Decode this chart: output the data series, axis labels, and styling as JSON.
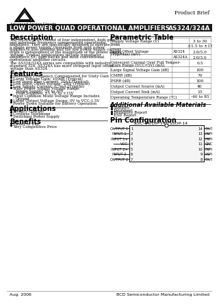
{
  "title": "LOW POWER QUAD OPERATIONAL AMPLIFIERS",
  "part_number": "AS324/324A",
  "product_brief": "Product Brief",
  "company": "Advanced Analog Circuits",
  "description_title": "Description",
  "features_title": "Features",
  "applications_title": "Applications",
  "benefits_title": "Benefits",
  "parametric_title": "Parametric Table",
  "additional_title": "Additional Available Materials",
  "pin_title": "Pin Configuration",
  "pin_subtitle": "SOIC-14/DIP-14/TSSOP-14",
  "pin_left": [
    "OUTPUT 1",
    "INPUT 1-",
    "INPUT 1+",
    "VCC",
    "INPUT 2+",
    "INPUT 2-",
    "OUTPUT 2"
  ],
  "pin_right": [
    "OUTPUT 4",
    "INPUT 4-",
    "INPUT 4+",
    "GND",
    "INPUT 3+",
    "INPUT 3-",
    "OUTPUT 3"
  ],
  "pin_numbers_left": [
    1,
    2,
    3,
    4,
    5,
    6,
    7
  ],
  "pin_numbers_right": [
    14,
    13,
    12,
    11,
    10,
    9,
    8
  ],
  "footer_left": "Aug. 2006",
  "footer_right": "BCD Semiconductor Manufacturing Limited",
  "header_bg": "#1a1a1a",
  "body_bg": "#ffffff",
  "desc_lines": [
    "The AS324/324A consist of four independent, high gain",
    "and internally frequency compensated operational",
    "amplifiers. They are specifically designed to operate from",
    "a single power supply. Operation from split power",
    "supplies is also possible and the low power supply current",
    "drain is independent of the magnitude of the power supply",
    "voltage. Typical applications include transducer",
    "amplifiers, DC gain blocks and most conventional",
    "operational amplifier circuits.",
    "",
    "The AS324/324A series are compatible with industry",
    "standard 324. AS324A has more stringent input offset",
    "voltage than AS324."
  ],
  "features_items": [
    [
      "Internally Frequency Compensated for Unity Gain"
    ],
    [
      "Large Voltage Gain: 100dB (Typical)"
    ],
    [
      "Low Input Bias Current: 20nA (Typical)"
    ],
    [
      "Low Input Offset Voltage: 2mV (Typical)"
    ],
    [
      "Low Supply Current: 0.7mA (Typical)"
    ],
    [
      "Wide Power Supply Voltage Range:",
      "Single Supply: 3V to 30V",
      "Dual Supplies: ±1.5V to ±15V"
    ],
    [
      "Input Common Mode Voltage Range Includes",
      "Ground"
    ],
    [
      "Large Output Voltage Swing: 0V to VCC-1.5V"
    ],
    [
      "Power Down Suitable for Battery Operation"
    ]
  ],
  "applications_items": [
    "Battery Charger",
    "Cordless Telephone",
    "Switching Power Supply"
  ],
  "benefits_items": [
    "Easier to Use",
    "Very Competitive Price"
  ],
  "additional_items": [
    "Samples",
    "Datasheet",
    "Reliability Report",
    "ESD Report"
  ],
  "table_rows": [
    {
      "param": "Supply Voltage Range (V)",
      "sub": "",
      "value": "3 to 30",
      "rh": 8
    },
    {
      "param": "",
      "sub": "",
      "value": "±1.5 to ±15",
      "rh": 7
    },
    {
      "param": "Input Offset Voltage\n(Typ/Max) (mV)",
      "sub": "AS324",
      "value": "2.0/5.0",
      "rh": 9
    },
    {
      "param": "",
      "sub": "AS324A",
      "value": "2.0/3.0",
      "rh": 7
    },
    {
      "param": "Quiescent Current Over Full Temper-\nature Range (VCC=5V) (mA)",
      "sub": "",
      "value": "0.5",
      "rh": 11
    },
    {
      "param": "Large Signal Voltage Gain (dB)",
      "sub": "",
      "value": "100",
      "rh": 8
    },
    {
      "param": "CMRR (dB)",
      "sub": "",
      "value": "70",
      "rh": 8
    },
    {
      "param": "PSRR (dB)",
      "sub": "",
      "value": "100",
      "rh": 8
    },
    {
      "param": "Output Current Source (mA)",
      "sub": "",
      "value": "40",
      "rh": 8
    },
    {
      "param": "Output Current Sink (mA)",
      "sub": "",
      "value": "15",
      "rh": 8
    },
    {
      "param": "Operating Temperature Range (°C)",
      "sub": "",
      "value": "-40 to 85",
      "rh": 8
    }
  ]
}
